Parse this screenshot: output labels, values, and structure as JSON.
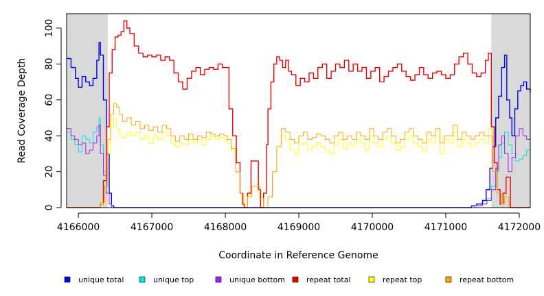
{
  "chart_data": {
    "type": "line",
    "title": "",
    "xlabel": "Coordinate in Reference Genome",
    "ylabel": "Read Coverage Depth",
    "xlim": [
      4165840,
      4172150
    ],
    "ylim": [
      0,
      108
    ],
    "xticks": [
      4166000,
      4167000,
      4168000,
      4169000,
      4170000,
      4171000,
      4172000
    ],
    "xtick_labels": [
      "4166000",
      "4167000",
      "4168000",
      "4169000",
      "4170000",
      "4171000",
      "4172000"
    ],
    "yticks": [
      0,
      20,
      40,
      60,
      80,
      100
    ],
    "ytick_labels": [
      "0",
      "20",
      "40",
      "60",
      "80",
      "100"
    ],
    "grid": false,
    "legend_position": "bottom",
    "shaded_regions": [
      {
        "x0": 4165840,
        "x1": 4166400,
        "color": "#d9d9d9"
      },
      {
        "x0": 4171620,
        "x1": 4172150,
        "color": "#d9d9d9"
      }
    ],
    "series": [
      {
        "name": "unique total",
        "color": "#0000ee",
        "x": [
          4165840,
          4165900,
          4165960,
          4166000,
          4166050,
          4166100,
          4166150,
          4166200,
          4166250,
          4166280,
          4166300,
          4166340,
          4166380,
          4166420,
          4166450,
          4166480,
          4171300,
          4171350,
          4171420,
          4171500,
          4171550,
          4171600,
          4171640,
          4171680,
          4171720,
          4171760,
          4171800,
          4171830,
          4171870,
          4171900,
          4171940,
          4171980,
          4172020,
          4172060,
          4172100,
          4172150
        ],
        "y": [
          83,
          78,
          72,
          67,
          73,
          70,
          68,
          72,
          82,
          92,
          85,
          60,
          30,
          8,
          1,
          0,
          0,
          1,
          2,
          4,
          10,
          22,
          34,
          50,
          62,
          78,
          85,
          60,
          50,
          40,
          55,
          65,
          68,
          70,
          66,
          64
        ]
      },
      {
        "name": "unique top",
        "color": "#00e5e5",
        "x": [
          4165840,
          4165900,
          4165950,
          4166000,
          4166050,
          4166100,
          4166150,
          4166200,
          4166250,
          4166280,
          4166300,
          4166340,
          4166380,
          4166420,
          4166450,
          4171300,
          4171400,
          4171500,
          4171560,
          4171620,
          4171680,
          4171720,
          4171760,
          4171800,
          4171850,
          4171900,
          4171950,
          4172000,
          4172050,
          4172100,
          4172150
        ],
        "y": [
          42,
          38,
          35,
          31,
          40,
          38,
          36,
          42,
          45,
          50,
          35,
          20,
          8,
          2,
          0,
          0,
          1,
          2,
          5,
          12,
          20,
          28,
          36,
          42,
          35,
          30,
          26,
          27,
          29,
          32,
          30
        ]
      },
      {
        "name": "unique bottom",
        "color": "#a020f0",
        "x": [
          4165840,
          4165900,
          4165950,
          4166000,
          4166050,
          4166100,
          4166150,
          4166200,
          4166250,
          4166280,
          4166300,
          4166340,
          4166380,
          4166420,
          4166450,
          4171300,
          4171400,
          4171500,
          4171560,
          4171620,
          4171680,
          4171720,
          4171760,
          4171800,
          4171850,
          4171900,
          4171950,
          4172000,
          4172050,
          4172100,
          4172150
        ],
        "y": [
          44,
          40,
          38,
          35,
          36,
          30,
          32,
          36,
          40,
          46,
          30,
          18,
          8,
          2,
          0,
          0,
          1,
          2,
          4,
          10,
          22,
          35,
          40,
          30,
          20,
          28,
          40,
          44,
          40,
          38,
          34
        ]
      },
      {
        "name": "repeat total",
        "color": "#ee0000",
        "x": [
          4165840,
          4166250,
          4166300,
          4166340,
          4166380,
          4166420,
          4166460,
          4166500,
          4166540,
          4166580,
          4166620,
          4166660,
          4166700,
          4166760,
          4166820,
          4166880,
          4166940,
          4167000,
          4167060,
          4167120,
          4167180,
          4167240,
          4167300,
          4167360,
          4167420,
          4167480,
          4167540,
          4167600,
          4167660,
          4167720,
          4167780,
          4167840,
          4167900,
          4167960,
          4168000,
          4168050,
          4168100,
          4168150,
          4168200,
          4168230,
          4168260,
          4168300,
          4168350,
          4168400,
          4168450,
          4168480,
          4168520,
          4168560,
          4168580,
          4168620,
          4168660,
          4168700,
          4168740,
          4168780,
          4168820,
          4168860,
          4168900,
          4168960,
          4169020,
          4169080,
          4169140,
          4169200,
          4169260,
          4169320,
          4169380,
          4169440,
          4169500,
          4169560,
          4169620,
          4169680,
          4169740,
          4169800,
          4169860,
          4169920,
          4169980,
          4170040,
          4170100,
          4170160,
          4170220,
          4170280,
          4170340,
          4170400,
          4170460,
          4170520,
          4170580,
          4170640,
          4170700,
          4170760,
          4170820,
          4170880,
          4170940,
          4171000,
          4171060,
          4171120,
          4171180,
          4171240,
          4171300,
          4171360,
          4171420,
          4171480,
          4171540,
          4171580,
          4171620,
          4171660,
          4171700,
          4171740,
          4171780,
          4171820,
          4171860,
          4171880,
          4172150
        ],
        "y": [
          0,
          0,
          2,
          15,
          45,
          75,
          88,
          95,
          96,
          98,
          104,
          100,
          97,
          90,
          86,
          84,
          85,
          84,
          85,
          82,
          84,
          82,
          75,
          70,
          66,
          72,
          76,
          78,
          74,
          77,
          78,
          77,
          80,
          78,
          78,
          55,
          40,
          25,
          8,
          2,
          0,
          8,
          26,
          26,
          10,
          0,
          8,
          35,
          55,
          70,
          80,
          84,
          82,
          78,
          82,
          76,
          74,
          68,
          72,
          70,
          75,
          72,
          78,
          80,
          72,
          76,
          80,
          78,
          82,
          76,
          80,
          76,
          78,
          72,
          76,
          78,
          70,
          73,
          76,
          78,
          80,
          76,
          73,
          71,
          74,
          78,
          74,
          72,
          75,
          76,
          74,
          72,
          74,
          80,
          84,
          86,
          80,
          75,
          73,
          75,
          82,
          86,
          45,
          25,
          10,
          2,
          8,
          17,
          17,
          0,
          0
        ]
      },
      {
        "name": "repeat top",
        "color": "#ffff00",
        "x": [
          4165840,
          4166250,
          4166300,
          4166360,
          4166400,
          4166440,
          4166480,
          4166520,
          4166560,
          4166600,
          4166660,
          4166720,
          4166780,
          4166840,
          4166900,
          4166960,
          4167020,
          4167080,
          4167140,
          4167200,
          4167260,
          4167320,
          4167380,
          4167440,
          4167500,
          4167560,
          4167620,
          4167680,
          4167740,
          4167800,
          4167860,
          4167920,
          4167980,
          4168030,
          4168080,
          4168140,
          4168200,
          4168250,
          4168300,
          4168360,
          4168420,
          4168470,
          4168520,
          4168580,
          4168640,
          4168700,
          4168760,
          4168820,
          4168880,
          4168940,
          4169000,
          4169060,
          4169120,
          4169180,
          4169240,
          4169300,
          4169360,
          4169420,
          4169480,
          4169540,
          4169600,
          4169660,
          4169720,
          4169780,
          4169840,
          4169900,
          4169960,
          4170020,
          4170080,
          4170140,
          4170200,
          4170260,
          4170320,
          4170380,
          4170440,
          4170500,
          4170560,
          4170620,
          4170680,
          4170740,
          4170800,
          4170860,
          4170920,
          4170980,
          4171040,
          4171100,
          4171160,
          4171220,
          4171280,
          4171340,
          4171400,
          4171460,
          4171520,
          4171580,
          4171640,
          4171700,
          4171760,
          4171800,
          4171860,
          4172150
        ],
        "y": [
          0,
          0,
          2,
          10,
          30,
          45,
          50,
          44,
          40,
          39,
          42,
          40,
          42,
          38,
          40,
          36,
          40,
          38,
          42,
          40,
          36,
          34,
          36,
          35,
          38,
          36,
          38,
          35,
          38,
          40,
          38,
          39,
          38,
          36,
          32,
          20,
          8,
          0,
          6,
          12,
          12,
          5,
          0,
          6,
          20,
          34,
          40,
          38,
          32,
          30,
          35,
          36,
          32,
          34,
          36,
          34,
          32,
          30,
          35,
          38,
          33,
          36,
          34,
          38,
          36,
          32,
          40,
          36,
          34,
          38,
          40,
          36,
          32,
          34,
          38,
          40,
          36,
          34,
          32,
          38,
          36,
          40,
          30,
          38,
          36,
          42,
          34,
          38,
          36,
          34,
          36,
          38,
          36,
          44,
          20,
          8,
          2,
          6,
          0,
          0
        ]
      },
      {
        "name": "repeat bottom",
        "color": "#ffa500",
        "x": [
          4165840,
          4166250,
          4166300,
          4166360,
          4166400,
          4166440,
          4166480,
          4166520,
          4166560,
          4166600,
          4166660,
          4166720,
          4166780,
          4166840,
          4166900,
          4166960,
          4167020,
          4167080,
          4167140,
          4167200,
          4167260,
          4167320,
          4167380,
          4167440,
          4167500,
          4167560,
          4167620,
          4167680,
          4167740,
          4167800,
          4167860,
          4167920,
          4167980,
          4168030,
          4168080,
          4168140,
          4168200,
          4168250,
          4168300,
          4168360,
          4168420,
          4168470,
          4168520,
          4168580,
          4168640,
          4168700,
          4168760,
          4168820,
          4168880,
          4168940,
          4169000,
          4169060,
          4169120,
          4169180,
          4169240,
          4169300,
          4169360,
          4169420,
          4169480,
          4169540,
          4169600,
          4169660,
          4169720,
          4169780,
          4169840,
          4169900,
          4169960,
          4170020,
          4170080,
          4170140,
          4170200,
          4170260,
          4170320,
          4170380,
          4170440,
          4170500,
          4170560,
          4170620,
          4170680,
          4170740,
          4170800,
          4170860,
          4170920,
          4170980,
          4171040,
          4171100,
          4171160,
          4171220,
          4171280,
          4171340,
          4171400,
          4171460,
          4171520,
          4171580,
          4171640,
          4171700,
          4171760,
          4171800,
          4171860,
          4172150
        ],
        "y": [
          0,
          0,
          3,
          12,
          38,
          52,
          58,
          56,
          52,
          48,
          50,
          46,
          48,
          44,
          46,
          43,
          45,
          42,
          46,
          44,
          40,
          37,
          40,
          38,
          41,
          38,
          40,
          39,
          42,
          41,
          40,
          41,
          40,
          38,
          33,
          20,
          8,
          0,
          6,
          12,
          12,
          5,
          0,
          6,
          20,
          34,
          44,
          42,
          38,
          36,
          40,
          42,
          38,
          39,
          41,
          40,
          38,
          36,
          40,
          42,
          38,
          40,
          38,
          42,
          40,
          38,
          44,
          40,
          38,
          42,
          44,
          40,
          36,
          38,
          42,
          44,
          40,
          38,
          36,
          42,
          40,
          44,
          36,
          40,
          40,
          46,
          38,
          42,
          40,
          38,
          40,
          42,
          40,
          40,
          20,
          8,
          2,
          6,
          0,
          0
        ]
      }
    ]
  }
}
